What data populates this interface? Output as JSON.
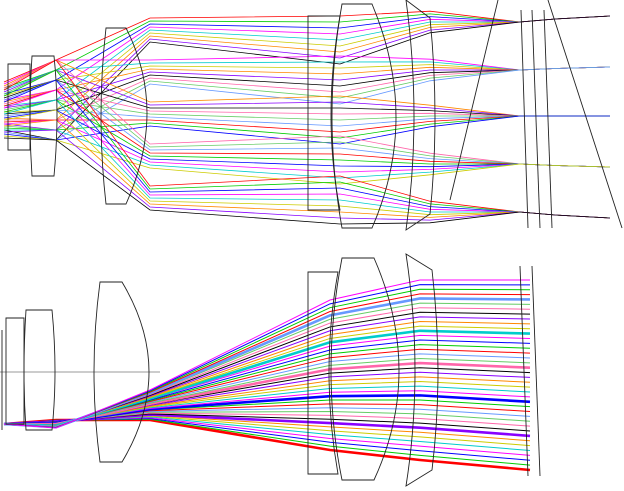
{
  "figure": {
    "panels": [
      {
        "id": "top",
        "description_visible_text": "",
        "field_bundles": 5,
        "rays_per_bundle": 9
      },
      {
        "id": "bottom",
        "description_visible_text": "",
        "rays_count": 40
      }
    ],
    "palette": [
      "#ff0000",
      "#00cc00",
      "#0000ff",
      "#ff00ff",
      "#00cccc",
      "#cccc00",
      "#ff8800",
      "#8800ff",
      "#000000",
      "#ff66aa",
      "#66cc66",
      "#6699ff"
    ]
  }
}
